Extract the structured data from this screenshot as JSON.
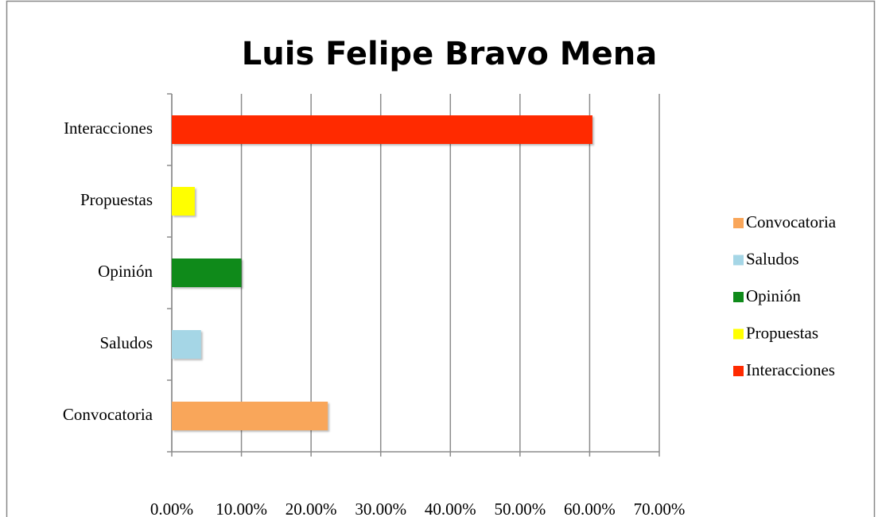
{
  "chart_data": {
    "type": "barh",
    "title": "Luis Felipe Bravo Mena",
    "categories": [
      "Convocatoria",
      "Saludos",
      "Opinión",
      "Propuestas",
      "Interacciones"
    ],
    "values": [
      22.4,
      4.2,
      10.0,
      3.3,
      60.4
    ],
    "colors": [
      "#f9a65a",
      "#a5d6e6",
      "#0f8a1a",
      "#ffff00",
      "#ff2a00"
    ],
    "xlim": [
      0,
      70
    ],
    "xticks": [
      {
        "value": 0,
        "label": "0.00%"
      },
      {
        "value": 10,
        "label": "10.00%"
      },
      {
        "value": 20,
        "label": "20.00%"
      },
      {
        "value": 30,
        "label": "30.00%"
      },
      {
        "value": 40,
        "label": "40.00%"
      },
      {
        "value": 50,
        "label": "50.00%"
      },
      {
        "value": 60,
        "label": "60.00%"
      },
      {
        "value": 70,
        "label": "70.00%"
      }
    ],
    "grid": true,
    "legend": "right"
  }
}
